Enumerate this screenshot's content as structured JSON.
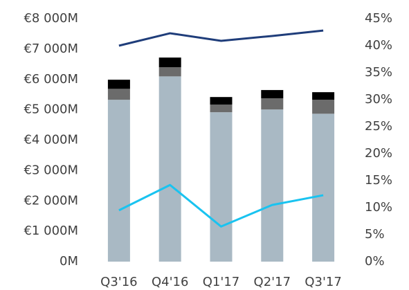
{
  "chart_data": {
    "type": "bar",
    "stacked": true,
    "categories": [
      "Q3'16",
      "Q4'16",
      "Q1'17",
      "Q2'17",
      "Q3'17"
    ],
    "series": [
      {
        "type": "bar",
        "color": "#a9b9c4",
        "values": [
          5330,
          6100,
          4920,
          5010,
          4870
        ]
      },
      {
        "type": "bar",
        "color": "#6b6b6b",
        "values": [
          360,
          300,
          250,
          370,
          460
        ]
      },
      {
        "type": "bar",
        "color": "#000000",
        "values": [
          300,
          320,
          250,
          270,
          250
        ]
      },
      {
        "type": "line",
        "axis": "y2",
        "color": "#1f3d7a",
        "values": [
          40,
          42.3,
          40.9,
          41.8,
          42.8
        ]
      },
      {
        "type": "line",
        "axis": "y2",
        "color": "#19c3f0",
        "values": [
          9.5,
          14.2,
          6.5,
          10.5,
          12.3
        ]
      }
    ],
    "ylim": [
      0,
      8000
    ],
    "yticks": [
      {
        "value": 0,
        "label": "0M"
      },
      {
        "value": 1000,
        "label": "€1 000M"
      },
      {
        "value": 2000,
        "label": "€2 000M"
      },
      {
        "value": 3000,
        "label": "€3 000M"
      },
      {
        "value": 4000,
        "label": "€4 000M"
      },
      {
        "value": 5000,
        "label": "€5 000M"
      },
      {
        "value": 6000,
        "label": "€6 000M"
      },
      {
        "value": 7000,
        "label": "€7 000M"
      },
      {
        "value": 8000,
        "label": "€8 000M"
      }
    ],
    "y2lim": [
      0,
      45
    ],
    "y2ticks": [
      {
        "value": 0,
        "label": "0%"
      },
      {
        "value": 5,
        "label": "5%"
      },
      {
        "value": 10,
        "label": "10%"
      },
      {
        "value": 15,
        "label": "15%"
      },
      {
        "value": 20,
        "label": "20%"
      },
      {
        "value": 25,
        "label": "25%"
      },
      {
        "value": 30,
        "label": "30%"
      },
      {
        "value": 35,
        "label": "35%"
      },
      {
        "value": 40,
        "label": "40%"
      },
      {
        "value": 45,
        "label": "45%"
      }
    ]
  }
}
